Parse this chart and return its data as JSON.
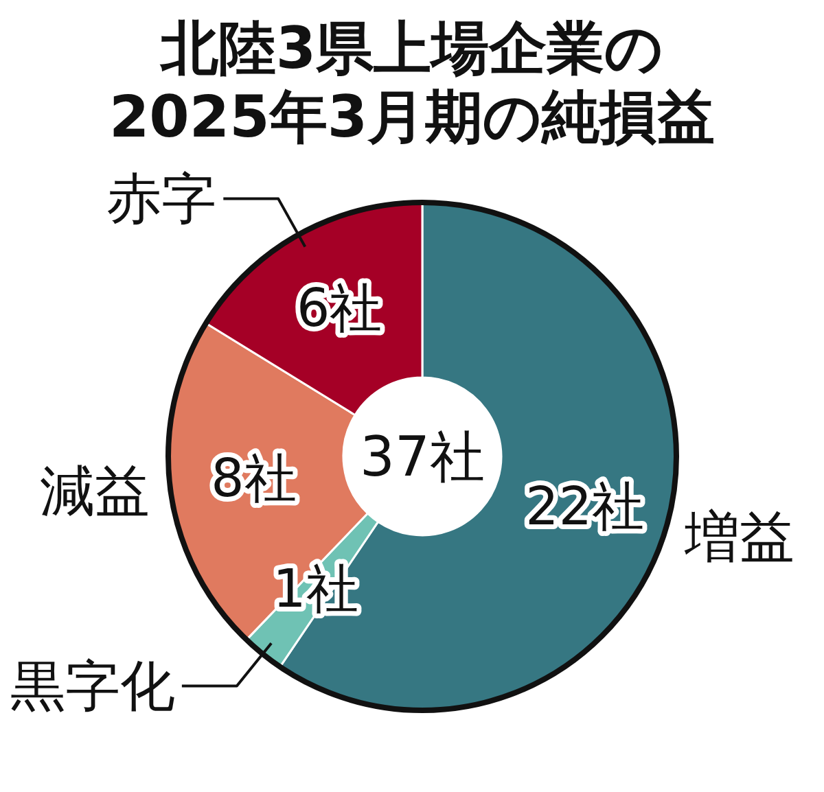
{
  "chart_data": {
    "type": "donut",
    "title": "北陸3県上場企業の\n2025年3月期の純損益",
    "categories": [
      "増益",
      "黒字化",
      "減益",
      "赤字"
    ],
    "values": [
      22,
      1,
      8,
      6
    ],
    "colors": [
      "#367782",
      "#6fc2b4",
      "#e07a5f",
      "#a50026"
    ],
    "value_labels": [
      "22社",
      "1社",
      "8社",
      "6社"
    ],
    "annotations": [
      "37社"
    ]
  }
}
